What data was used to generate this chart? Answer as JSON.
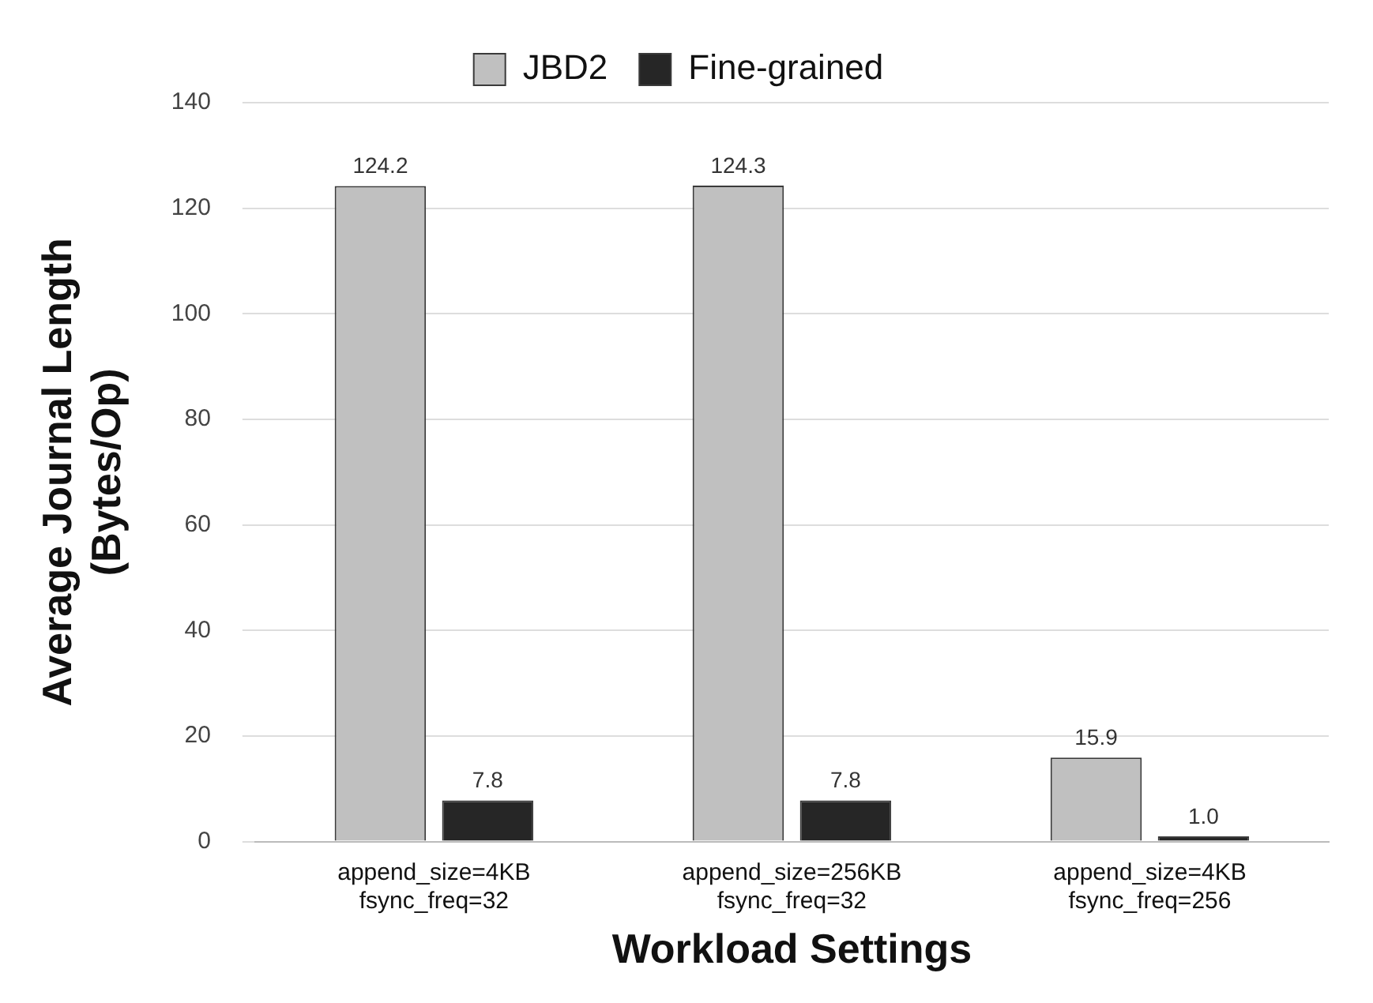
{
  "chart_data": {
    "type": "bar",
    "xlabel": "Workload Settings",
    "ylabel": "Average Journal Length\n(Bytes/Op)",
    "categories": [
      "append_size=4KB\nfsync_freq=32",
      "append_size=256KB\nfsync_freq=32",
      "append_size=4KB\nfsync_freq=256"
    ],
    "series": [
      {
        "name": "JBD2",
        "color": "#c0c0c0",
        "values": [
          124.2,
          124.3,
          15.9
        ],
        "value_labels": [
          "124.2",
          "124.3",
          "15.9"
        ]
      },
      {
        "name": "Fine-grained",
        "color": "#262626",
        "values": [
          7.8,
          7.8,
          1.0
        ],
        "value_labels": [
          "7.8",
          "7.8",
          "1.0"
        ]
      }
    ],
    "ylim": [
      0,
      140
    ],
    "yticks": [
      0,
      20,
      40,
      60,
      80,
      100,
      120,
      140
    ],
    "grid": "y",
    "legend": "top"
  }
}
